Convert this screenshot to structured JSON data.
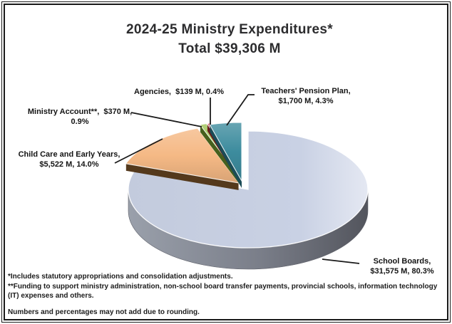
{
  "title": {
    "line1": "2024-25 Ministry Expenditures*",
    "line2": "Total $39,306 M"
  },
  "chart_data": {
    "type": "pie",
    "title": "2024-25 Ministry Expenditures*",
    "subtitle": "Total $39,306 M",
    "total_value_m": 39306,
    "unit": "$ M",
    "style": "3d-exploded-pie",
    "start_angle_deg": 0,
    "direction": "clockwise",
    "slices": [
      {
        "name": "School Boards",
        "value_m": 31575,
        "pct": 80.3,
        "color": "#c9d1e4",
        "side_color": "#5e606b",
        "exploded": false
      },
      {
        "name": "Child Care and Early Years",
        "value_m": 5522,
        "pct": 14.0,
        "color": "#f5b985",
        "side_color": "#54391c",
        "exploded": true
      },
      {
        "name": "Ministry Account**",
        "value_m": 370,
        "pct": 0.9,
        "color": "#9cc355",
        "side_color": "#46601d",
        "exploded": true
      },
      {
        "name": "Agencies",
        "value_m": 139,
        "pct": 0.4,
        "color": "#c93136",
        "side_color": "#6b1a1a",
        "exploded": true
      },
      {
        "name": "Teachers' Pension Plan",
        "value_m": 1700,
        "pct": 4.3,
        "color": "#3d8c9e",
        "side_color": "#1b4c57",
        "exploded": true
      }
    ]
  },
  "callouts": {
    "agencies": {
      "line1": "Agencies,  $139 M, 0.4%"
    },
    "teachers": {
      "line1": "Teachers' Pension Plan,",
      "line2": "$1,700 M, 4.3%"
    },
    "ministry": {
      "line1": "Ministry Account**,  $370 M,",
      "line2": "0.9%"
    },
    "childcare": {
      "line1": "Child Care and Early Years,",
      "line2": "$5,522 M, 14.0%"
    },
    "schoolboards": {
      "line1": "School Boards,",
      "line2": "$31,575 M, 80.3%"
    }
  },
  "footnotes": [
    {
      "text": "*Includes statutory appropriations and consolidation adjustments."
    },
    {
      "text": "**Funding to support ministry administration, non-school board transfer payments, provincial schools, information technology (IT) expenses and others."
    },
    {
      "text": "Numbers and percentages may not add due to rounding."
    }
  ]
}
